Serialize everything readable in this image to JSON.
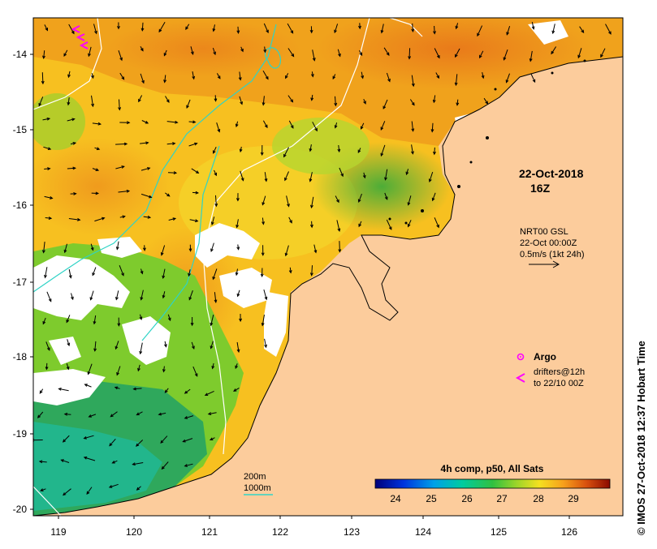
{
  "map": {
    "title_date": "22-Oct-2018",
    "title_time": "16Z",
    "current_source": "NRT00 GSL",
    "current_date": "22-Oct 00:00Z",
    "vector_scale_label": "0.5m/s (1kt 24h)",
    "legend": {
      "argo_label": "Argo",
      "drifters_label": "drifters@12h",
      "drifters_sub": "to 22/10 00Z"
    },
    "isobaths": {
      "shallow": "200m",
      "deep": "1000m"
    },
    "colorbar": {
      "title": "4h comp, p50, All Sats",
      "ticks": [
        "24",
        "25",
        "26",
        "27",
        "28",
        "29"
      ]
    },
    "credit": "IMOS 27-Oct-2018 12:37 Hobart Time",
    "credit_symbol": "©",
    "lon_ticks": [
      "119",
      "120",
      "121",
      "122",
      "123",
      "124",
      "125",
      "126"
    ],
    "lat_ticks": [
      "-14",
      "-15",
      "-16",
      "-17",
      "-18",
      "-19",
      "-20"
    ],
    "colors": {
      "land": "#fccc9c",
      "warm": "#f08a1c",
      "mid": "#f7c81a",
      "cool": "#7ecb2d",
      "cold": "#2fa85c",
      "cloud": "#ffffff",
      "isobath_200": "#2fd3c6",
      "isobath_1000": "#ffffff",
      "drifter": "#ff00ff"
    }
  }
}
